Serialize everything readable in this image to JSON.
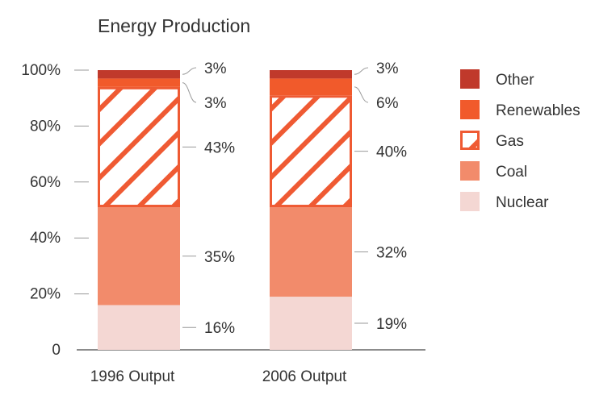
{
  "chart_data": {
    "type": "bar",
    "stacked": true,
    "normalized": true,
    "title": "Energy Production",
    "xlabel": "",
    "ylabel": "",
    "ylim": [
      0,
      100
    ],
    "y_ticks": [
      {
        "value": 0,
        "label": "0"
      },
      {
        "value": 20,
        "label": "20%"
      },
      {
        "value": 40,
        "label": "40%"
      },
      {
        "value": 60,
        "label": "60%"
      },
      {
        "value": 80,
        "label": "80%"
      },
      {
        "value": 100,
        "label": "100%"
      }
    ],
    "grid": false,
    "legend_position": "right",
    "categories": [
      "1996 Output",
      "2006 Output"
    ],
    "series": [
      {
        "name": "Nuclear",
        "color": "#f4d7d3",
        "pattern": "solid",
        "values": [
          16,
          19
        ],
        "labels": [
          "16%",
          "19%"
        ]
      },
      {
        "name": "Coal",
        "color": "#f28b6b",
        "pattern": "solid",
        "values": [
          35,
          32
        ],
        "labels": [
          "35%",
          "32%"
        ]
      },
      {
        "name": "Gas",
        "color": "#ef5a33",
        "pattern": "hatch",
        "values": [
          43,
          40
        ],
        "labels": [
          "43%",
          "40%"
        ]
      },
      {
        "name": "Renewables",
        "color": "#f15a2b",
        "pattern": "solid",
        "values": [
          3,
          6
        ],
        "labels": [
          "3%",
          "6%"
        ]
      },
      {
        "name": "Other",
        "color": "#c0392b",
        "pattern": "solid",
        "values": [
          3,
          3
        ],
        "labels": [
          "3%",
          "3%"
        ]
      }
    ],
    "legend_order": [
      "Other",
      "Renewables",
      "Gas",
      "Coal",
      "Nuclear"
    ]
  }
}
